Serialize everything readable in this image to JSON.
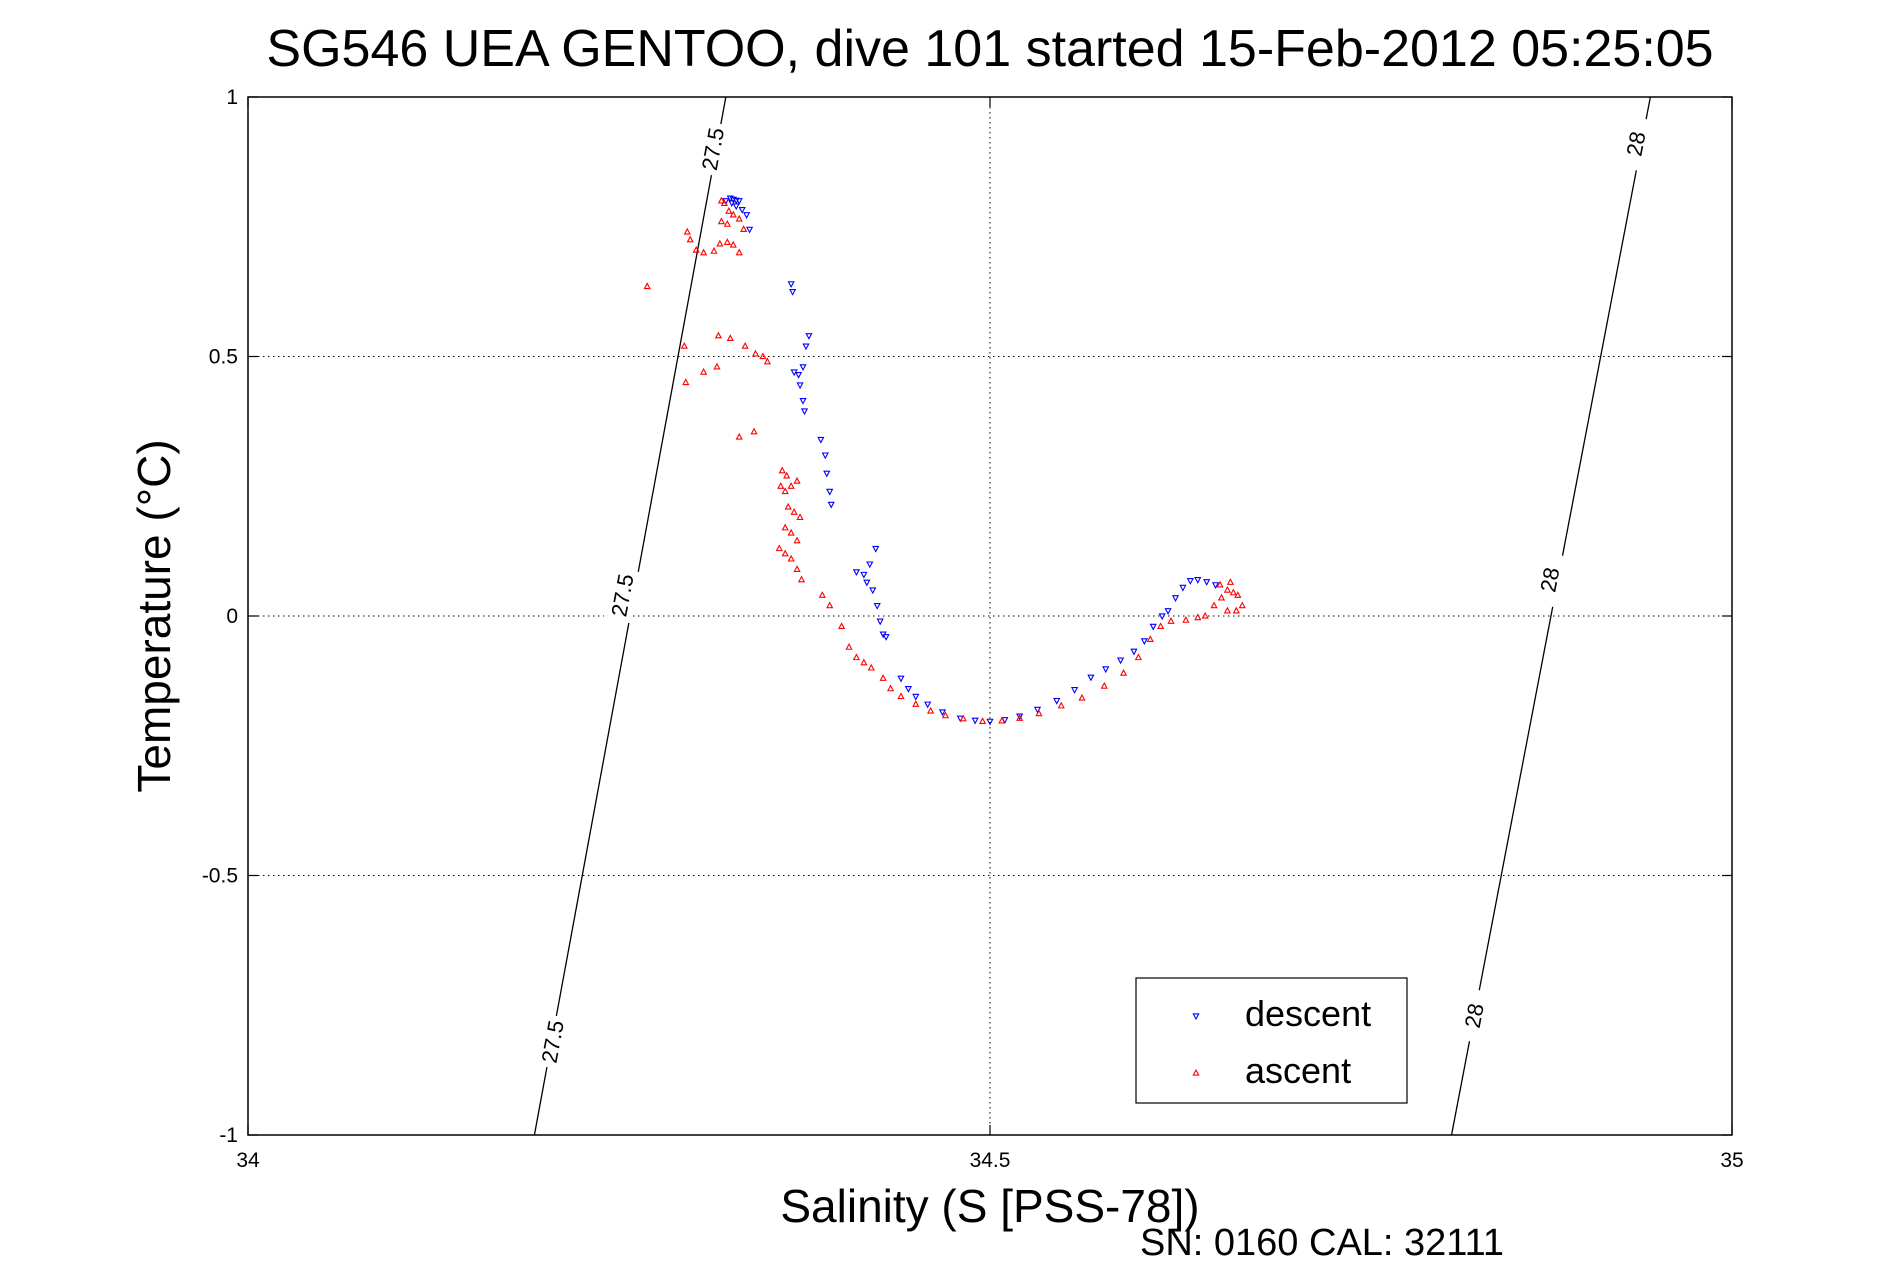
{
  "chart_data": {
    "type": "scatter",
    "title": "SG546 UEA GENTOO, dive 101 started 15-Feb-2012 05:25:05",
    "xlabel": "Salinity (S [PSS-78])",
    "ylabel": "Temperature (°C)",
    "xlim": [
      34,
      35
    ],
    "ylim": [
      -1,
      1
    ],
    "xticks": [
      "34",
      "34.5",
      "35"
    ],
    "yticks": [
      "-1",
      "-0.5",
      "0",
      "0.5",
      "1"
    ],
    "grid": true,
    "legend_position": "bottom-right",
    "footnote": "SN: 0160  CAL: 32111",
    "contours": [
      {
        "value": "27.5",
        "points": [
          [
            34.193,
            -1.0
          ],
          [
            34.322,
            1.0
          ]
        ],
        "labels": [
          {
            "text": "27.5",
            "s": 34.205,
            "t": -0.82
          },
          {
            "text": "27.5",
            "s": 34.252,
            "t": 0.04
          },
          {
            "text": "27.5",
            "s": 34.313,
            "t": 0.9
          }
        ]
      },
      {
        "value": "28",
        "points": [
          [
            34.811,
            -1.0
          ],
          [
            34.945,
            1.0
          ]
        ],
        "labels": [
          {
            "text": "28",
            "s": 34.826,
            "t": -0.77
          },
          {
            "text": "28",
            "s": 34.877,
            "t": 0.07
          },
          {
            "text": "28",
            "s": 34.935,
            "t": 0.91
          }
        ]
      }
    ],
    "series": [
      {
        "name": "descent",
        "color": "#0000ff",
        "marker": "triangle-down",
        "points": [
          [
            34.325,
            0.805
          ],
          [
            34.327,
            0.803
          ],
          [
            34.329,
            0.801
          ],
          [
            34.331,
            0.8
          ],
          [
            34.322,
            0.8
          ],
          [
            34.326,
            0.796
          ],
          [
            34.329,
            0.79
          ],
          [
            34.333,
            0.783
          ],
          [
            34.336,
            0.773
          ],
          [
            34.338,
            0.745
          ],
          [
            34.366,
            0.64
          ],
          [
            34.367,
            0.625
          ],
          [
            34.368,
            0.47
          ],
          [
            34.371,
            0.465
          ],
          [
            34.374,
            0.48
          ],
          [
            34.372,
            0.445
          ],
          [
            34.374,
            0.415
          ],
          [
            34.375,
            0.395
          ],
          [
            34.378,
            0.54
          ],
          [
            34.376,
            0.52
          ],
          [
            34.386,
            0.34
          ],
          [
            34.389,
            0.31
          ],
          [
            34.39,
            0.275
          ],
          [
            34.392,
            0.24
          ],
          [
            34.393,
            0.215
          ],
          [
            34.41,
            0.085
          ],
          [
            34.415,
            0.08
          ],
          [
            34.419,
            0.1
          ],
          [
            34.423,
            0.13
          ],
          [
            34.417,
            0.065
          ],
          [
            34.421,
            0.05
          ],
          [
            34.424,
            0.02
          ],
          [
            34.426,
            -0.01
          ],
          [
            34.428,
            -0.035
          ],
          [
            34.43,
            -0.04
          ],
          [
            34.44,
            -0.12
          ],
          [
            34.445,
            -0.14
          ],
          [
            34.45,
            -0.155
          ],
          [
            34.458,
            -0.17
          ],
          [
            34.468,
            -0.185
          ],
          [
            34.48,
            -0.197
          ],
          [
            34.49,
            -0.201
          ],
          [
            34.5,
            -0.203
          ],
          [
            34.51,
            -0.2
          ],
          [
            34.52,
            -0.193
          ],
          [
            34.532,
            -0.18
          ],
          [
            34.545,
            -0.163
          ],
          [
            34.557,
            -0.142
          ],
          [
            34.568,
            -0.118
          ],
          [
            34.578,
            -0.102
          ],
          [
            34.588,
            -0.085
          ],
          [
            34.597,
            -0.068
          ],
          [
            34.604,
            -0.048
          ],
          [
            34.61,
            -0.02
          ],
          [
            34.616,
            0.0
          ],
          [
            34.62,
            0.01
          ],
          [
            34.625,
            0.035
          ],
          [
            34.63,
            0.055
          ],
          [
            34.635,
            0.068
          ],
          [
            34.64,
            0.07
          ],
          [
            34.646,
            0.066
          ],
          [
            34.652,
            0.06
          ]
        ]
      },
      {
        "name": "ascent",
        "color": "#ff0000",
        "marker": "triangle-up",
        "points": [
          [
            34.269,
            0.635
          ],
          [
            34.296,
            0.74
          ],
          [
            34.298,
            0.725
          ],
          [
            34.302,
            0.705
          ],
          [
            34.307,
            0.7
          ],
          [
            34.314,
            0.703
          ],
          [
            34.318,
            0.717
          ],
          [
            34.323,
            0.72
          ],
          [
            34.327,
            0.715
          ],
          [
            34.331,
            0.7
          ],
          [
            34.319,
            0.8
          ],
          [
            34.321,
            0.795
          ],
          [
            34.324,
            0.78
          ],
          [
            34.319,
            0.76
          ],
          [
            34.323,
            0.755
          ],
          [
            34.327,
            0.773
          ],
          [
            34.331,
            0.765
          ],
          [
            34.334,
            0.745
          ],
          [
            34.294,
            0.52
          ],
          [
            34.307,
            0.47
          ],
          [
            34.317,
            0.54
          ],
          [
            34.325,
            0.535
          ],
          [
            34.335,
            0.52
          ],
          [
            34.342,
            0.505
          ],
          [
            34.347,
            0.5
          ],
          [
            34.35,
            0.49
          ],
          [
            34.295,
            0.45
          ],
          [
            34.316,
            0.48
          ],
          [
            34.331,
            0.345
          ],
          [
            34.341,
            0.355
          ],
          [
            34.36,
            0.28
          ],
          [
            34.363,
            0.27
          ],
          [
            34.359,
            0.25
          ],
          [
            34.362,
            0.24
          ],
          [
            34.366,
            0.25
          ],
          [
            34.37,
            0.26
          ],
          [
            34.364,
            0.21
          ],
          [
            34.368,
            0.2
          ],
          [
            34.372,
            0.19
          ],
          [
            34.362,
            0.17
          ],
          [
            34.366,
            0.16
          ],
          [
            34.37,
            0.145
          ],
          [
            34.358,
            0.13
          ],
          [
            34.362,
            0.12
          ],
          [
            34.366,
            0.11
          ],
          [
            34.37,
            0.09
          ],
          [
            34.373,
            0.07
          ],
          [
            34.387,
            0.04
          ],
          [
            34.392,
            0.02
          ],
          [
            34.4,
            -0.02
          ],
          [
            34.405,
            -0.06
          ],
          [
            34.41,
            -0.08
          ],
          [
            34.415,
            -0.09
          ],
          [
            34.42,
            -0.1
          ],
          [
            34.428,
            -0.12
          ],
          [
            34.433,
            -0.14
          ],
          [
            34.44,
            -0.155
          ],
          [
            34.45,
            -0.17
          ],
          [
            34.46,
            -0.183
          ],
          [
            34.47,
            -0.192
          ],
          [
            34.482,
            -0.198
          ],
          [
            34.495,
            -0.203
          ],
          [
            34.508,
            -0.202
          ],
          [
            34.52,
            -0.197
          ],
          [
            34.533,
            -0.188
          ],
          [
            34.548,
            -0.173
          ],
          [
            34.562,
            -0.158
          ],
          [
            34.577,
            -0.135
          ],
          [
            34.59,
            -0.11
          ],
          [
            34.6,
            -0.08
          ],
          [
            34.608,
            -0.045
          ],
          [
            34.615,
            -0.02
          ],
          [
            34.622,
            -0.01
          ],
          [
            34.632,
            -0.008
          ],
          [
            34.64,
            -0.003
          ],
          [
            34.645,
            0.0
          ],
          [
            34.651,
            0.02
          ],
          [
            34.656,
            0.035
          ],
          [
            34.66,
            0.05
          ],
          [
            34.664,
            0.045
          ],
          [
            34.667,
            0.04
          ],
          [
            34.66,
            0.01
          ],
          [
            34.666,
            0.01
          ],
          [
            34.67,
            0.02
          ],
          [
            34.655,
            0.06
          ],
          [
            34.662,
            0.065
          ]
        ]
      }
    ]
  }
}
